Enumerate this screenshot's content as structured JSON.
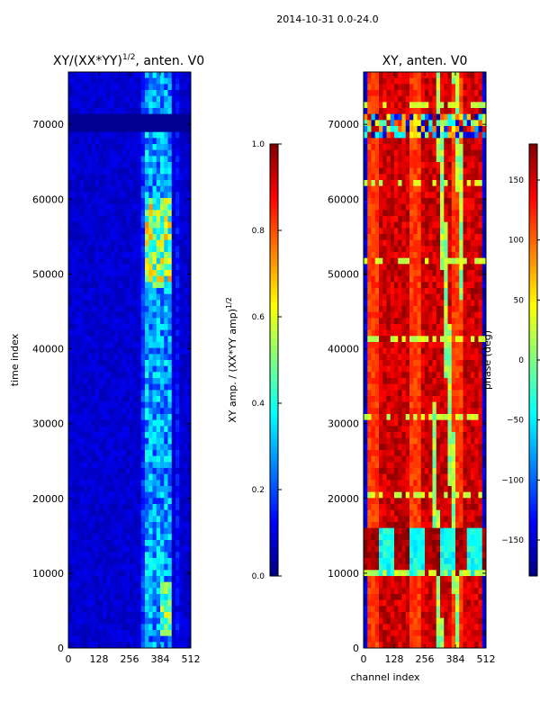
{
  "figure": {
    "suptitle": "2014-10-31 0.0-24.0"
  },
  "colors": {
    "jet_stops": [
      "#00007f",
      "#0000ff",
      "#007fff",
      "#00ffff",
      "#7fff7f",
      "#ffff00",
      "#ff7f00",
      "#ff0000",
      "#7f0000"
    ],
    "axis": "#000000",
    "background": "#ffffff"
  },
  "chart_data": [
    {
      "type": "heatmap",
      "title": "XY/(XX*YY)^1/2, anten. V0",
      "title_main": "XY/(XX*YY)",
      "title_exp": "1/2",
      "title_tail": ", anten. V0",
      "xlabel": "",
      "ylabel": "time index",
      "x_range": [
        0,
        512
      ],
      "y_range": [
        0,
        77000
      ],
      "x_ticks": [
        0,
        128,
        256,
        384,
        512
      ],
      "y_ticks": [
        0,
        10000,
        20000,
        30000,
        40000,
        50000,
        60000,
        70000
      ],
      "colorbar": {
        "label_main": "XY amp. / (XX*YY amp)",
        "label_exp": "1/2",
        "range": [
          0.0,
          1.0
        ],
        "ticks": [
          "0.0",
          "0.2",
          "0.4",
          "0.6",
          "0.8",
          "1.0"
        ],
        "colormap": "jet"
      },
      "value_description": "Mostly low normalized amplitude (~0.05) at channels 0-300; higher values (0.3-0.8) in channels ~320-440, brightest near time index 50000-58000."
    },
    {
      "type": "heatmap",
      "title": "XY, anten. V0",
      "xlabel": "channel index",
      "ylabel": "",
      "x_range": [
        0,
        512
      ],
      "y_range": [
        0,
        77000
      ],
      "x_ticks": [
        0,
        128,
        256,
        384,
        512
      ],
      "y_ticks": [
        0,
        10000,
        20000,
        30000,
        40000,
        50000,
        60000,
        70000
      ],
      "colorbar": {
        "label": "phase (deg)",
        "range": [
          -180,
          180
        ],
        "ticks": [
          "150",
          "100",
          "50",
          "0",
          "−50",
          "−100",
          "−150"
        ],
        "colormap": "jet"
      },
      "value_description": "Phase mostly 100-180 deg (red/orange) with cyan/green wrap bands, noisy region near time index 70000 and around 10000-16000."
    }
  ]
}
